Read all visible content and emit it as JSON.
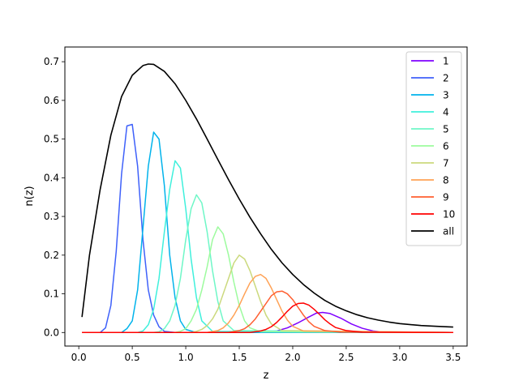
{
  "chart_data": {
    "type": "line",
    "title": "",
    "xlabel": "z",
    "ylabel": "n(z)",
    "xlim": [
      -0.13,
      3.63
    ],
    "ylim": [
      -0.035,
      0.738
    ],
    "xticks": [
      0.0,
      0.5,
      1.0,
      1.5,
      2.0,
      2.5,
      3.0,
      3.5
    ],
    "xtick_labels": [
      "0.0",
      "0.5",
      "1.0",
      "1.5",
      "2.0",
      "2.5",
      "3.0",
      "3.5"
    ],
    "yticks": [
      0.0,
      0.1,
      0.2,
      0.3,
      0.4,
      0.5,
      0.6,
      0.7
    ],
    "ytick_labels": [
      "0.0",
      "0.1",
      "0.2",
      "0.3",
      "0.4",
      "0.5",
      "0.6",
      "0.7"
    ],
    "grid": false,
    "legend_position": "top-right",
    "series": [
      {
        "name": "1",
        "color": "#7f00ff",
        "x": [
          0.03,
          1.7,
          1.85,
          1.95,
          2.05,
          2.15,
          2.22,
          2.28,
          2.35,
          2.45,
          2.55,
          2.65,
          2.75,
          2.85,
          3.0,
          3.5
        ],
        "y": [
          0.0,
          0.0,
          0.004,
          0.012,
          0.025,
          0.04,
          0.05,
          0.052,
          0.049,
          0.037,
          0.022,
          0.011,
          0.004,
          0.001,
          0.0,
          0.0
        ]
      },
      {
        "name": "2",
        "color": "#3f61fa",
        "x": [
          0.03,
          0.2,
          0.25,
          0.3,
          0.35,
          0.4,
          0.45,
          0.5,
          0.55,
          0.6,
          0.65,
          0.7,
          0.75,
          0.8,
          0.9,
          3.5
        ],
        "y": [
          0.0,
          0.0,
          0.012,
          0.07,
          0.21,
          0.41,
          0.534,
          0.538,
          0.43,
          0.24,
          0.11,
          0.045,
          0.015,
          0.003,
          0.0,
          0.0
        ]
      },
      {
        "name": "3",
        "color": "#01b3eb",
        "x": [
          0.03,
          0.4,
          0.45,
          0.5,
          0.55,
          0.6,
          0.65,
          0.7,
          0.75,
          0.8,
          0.85,
          0.9,
          0.95,
          1.0,
          1.1,
          3.5
        ],
        "y": [
          0.0,
          0.0,
          0.01,
          0.03,
          0.11,
          0.27,
          0.43,
          0.518,
          0.5,
          0.38,
          0.2,
          0.09,
          0.03,
          0.008,
          0.0,
          0.0
        ]
      },
      {
        "name": "4",
        "color": "#3ff0dc",
        "x": [
          0.03,
          0.55,
          0.6,
          0.65,
          0.7,
          0.75,
          0.8,
          0.85,
          0.9,
          0.95,
          1.0,
          1.05,
          1.1,
          1.15,
          1.25,
          3.5
        ],
        "y": [
          0.0,
          0.0,
          0.004,
          0.02,
          0.06,
          0.14,
          0.26,
          0.37,
          0.444,
          0.425,
          0.32,
          0.19,
          0.09,
          0.03,
          0.003,
          0.0
        ]
      },
      {
        "name": "5",
        "color": "#6ff7c7",
        "x": [
          0.03,
          0.7,
          0.75,
          0.8,
          0.85,
          0.9,
          0.95,
          1.0,
          1.05,
          1.1,
          1.15,
          1.2,
          1.25,
          1.3,
          1.35,
          1.45,
          3.5
        ],
        "y": [
          0.0,
          0.0,
          0.002,
          0.01,
          0.03,
          0.07,
          0.14,
          0.24,
          0.32,
          0.356,
          0.335,
          0.26,
          0.16,
          0.08,
          0.03,
          0.005,
          0.0
        ]
      },
      {
        "name": "6",
        "color": "#9dfb9e",
        "x": [
          0.03,
          0.9,
          0.95,
          1.0,
          1.05,
          1.1,
          1.15,
          1.2,
          1.25,
          1.3,
          1.35,
          1.4,
          1.45,
          1.5,
          1.55,
          1.6,
          1.7,
          3.5
        ],
        "y": [
          0.0,
          0.0,
          0.003,
          0.01,
          0.03,
          0.06,
          0.11,
          0.17,
          0.24,
          0.273,
          0.255,
          0.2,
          0.13,
          0.07,
          0.03,
          0.012,
          0.002,
          0.0
        ]
      },
      {
        "name": "7",
        "color": "#cbd97d",
        "x": [
          0.03,
          1.05,
          1.1,
          1.15,
          1.2,
          1.25,
          1.3,
          1.35,
          1.4,
          1.45,
          1.5,
          1.55,
          1.6,
          1.65,
          1.7,
          1.75,
          1.8,
          1.9,
          3.5
        ],
        "y": [
          0.0,
          0.0,
          0.003,
          0.008,
          0.018,
          0.035,
          0.06,
          0.1,
          0.14,
          0.18,
          0.2,
          0.19,
          0.16,
          0.12,
          0.08,
          0.045,
          0.022,
          0.005,
          0.0
        ]
      },
      {
        "name": "8",
        "color": "#ffa256",
        "x": [
          0.03,
          1.2,
          1.3,
          1.35,
          1.4,
          1.45,
          1.5,
          1.55,
          1.6,
          1.65,
          1.7,
          1.75,
          1.8,
          1.85,
          1.9,
          1.95,
          2.0,
          2.1,
          3.5
        ],
        "y": [
          0.0,
          0.0,
          0.005,
          0.012,
          0.025,
          0.045,
          0.07,
          0.1,
          0.128,
          0.145,
          0.15,
          0.14,
          0.115,
          0.085,
          0.055,
          0.032,
          0.016,
          0.004,
          0.0
        ]
      },
      {
        "name": "9",
        "color": "#ff5f31",
        "x": [
          0.03,
          1.4,
          1.5,
          1.55,
          1.6,
          1.65,
          1.7,
          1.75,
          1.8,
          1.85,
          1.9,
          1.95,
          2.0,
          2.05,
          2.1,
          2.15,
          2.2,
          2.3,
          2.45,
          3.5
        ],
        "y": [
          0.0,
          0.0,
          0.005,
          0.01,
          0.02,
          0.035,
          0.055,
          0.075,
          0.095,
          0.105,
          0.107,
          0.1,
          0.085,
          0.065,
          0.045,
          0.028,
          0.016,
          0.005,
          0.001,
          0.0
        ]
      },
      {
        "name": "10",
        "color": "#ff0000",
        "x": [
          0.03,
          1.6,
          1.7,
          1.75,
          1.8,
          1.85,
          1.9,
          1.95,
          2.0,
          2.05,
          2.1,
          2.15,
          2.2,
          2.25,
          2.3,
          2.35,
          2.4,
          2.5,
          2.65,
          3.5
        ],
        "y": [
          0.0,
          0.0,
          0.004,
          0.008,
          0.015,
          0.026,
          0.04,
          0.055,
          0.068,
          0.075,
          0.076,
          0.071,
          0.06,
          0.047,
          0.033,
          0.022,
          0.013,
          0.005,
          0.001,
          0.0
        ]
      },
      {
        "name": "all",
        "color": "#000000",
        "x": [
          0.03,
          0.1,
          0.2,
          0.3,
          0.4,
          0.5,
          0.6,
          0.65,
          0.7,
          0.8,
          0.9,
          1.0,
          1.1,
          1.2,
          1.3,
          1.4,
          1.5,
          1.6,
          1.7,
          1.8,
          1.9,
          2.0,
          2.1,
          2.2,
          2.3,
          2.4,
          2.5,
          2.6,
          2.7,
          2.8,
          2.9,
          3.0,
          3.2,
          3.35,
          3.5
        ],
        "y": [
          0.04,
          0.2,
          0.37,
          0.51,
          0.61,
          0.665,
          0.69,
          0.694,
          0.693,
          0.675,
          0.643,
          0.6,
          0.552,
          0.5,
          0.447,
          0.395,
          0.345,
          0.298,
          0.255,
          0.215,
          0.18,
          0.15,
          0.124,
          0.102,
          0.083,
          0.068,
          0.056,
          0.046,
          0.038,
          0.032,
          0.027,
          0.023,
          0.018,
          0.016,
          0.014
        ]
      }
    ]
  }
}
